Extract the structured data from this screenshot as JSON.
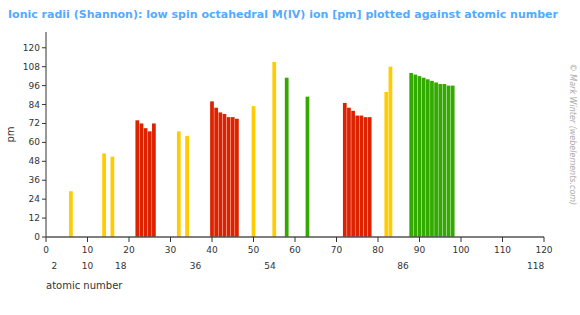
{
  "chart_data": {
    "type": "bar",
    "title": "Ionic radii (Shannon): low spin octahedral M(IV) ion [pm] plotted against atomic number",
    "xlabel": "atomic number",
    "ylabel": "pm",
    "title_color": "#55aaff",
    "x": [
      6,
      14,
      16,
      22,
      23,
      24,
      25,
      26,
      32,
      34,
      40,
      41,
      42,
      43,
      44,
      45,
      46,
      50,
      55,
      58,
      63,
      72,
      73,
      74,
      75,
      76,
      77,
      78,
      82,
      83,
      88,
      89,
      90,
      91,
      92,
      93,
      94,
      95,
      96,
      97,
      98
    ],
    "values": [
      29,
      53,
      51,
      74,
      72,
      69,
      67,
      72,
      67,
      64,
      86,
      82,
      79,
      78,
      76,
      76,
      75,
      83,
      111,
      101,
      89,
      85,
      82,
      80,
      77,
      77,
      76,
      76,
      92,
      108,
      104,
      103,
      102,
      101,
      100,
      99,
      98,
      97,
      97,
      96,
      96
    ],
    "colors": [
      "#ffcc00",
      "#ffcc00",
      "#ffcc00",
      "#dd2200",
      "#dd2200",
      "#dd2200",
      "#dd2200",
      "#dd2200",
      "#ffcc00",
      "#ffcc00",
      "#dd2200",
      "#dd2200",
      "#dd2200",
      "#dd2200",
      "#dd2200",
      "#dd2200",
      "#dd2200",
      "#ffcc00",
      "#ffcc00",
      "#33aa00",
      "#33aa00",
      "#dd2200",
      "#dd2200",
      "#dd2200",
      "#dd2200",
      "#dd2200",
      "#dd2200",
      "#dd2200",
      "#ffcc00",
      "#ffcc00",
      "#33aa00",
      "#33aa00",
      "#33aa00",
      "#33aa00",
      "#33aa00",
      "#33aa00",
      "#33aa00",
      "#33aa00",
      "#33aa00",
      "#33aa00",
      "#33aa00"
    ],
    "xlim": [
      0,
      120
    ],
    "ylim": [
      0,
      130
    ],
    "xticks": [
      0,
      10,
      20,
      30,
      40,
      50,
      60,
      70,
      80,
      90,
      100,
      110,
      120
    ],
    "yticks": [
      0,
      12,
      24,
      36,
      48,
      60,
      72,
      84,
      96,
      108,
      120
    ],
    "x2ticks": [
      2,
      10,
      18,
      36,
      54,
      86,
      118
    ],
    "annotations": [
      "© Mark Winter (webelements.com)"
    ],
    "grid": false
  }
}
